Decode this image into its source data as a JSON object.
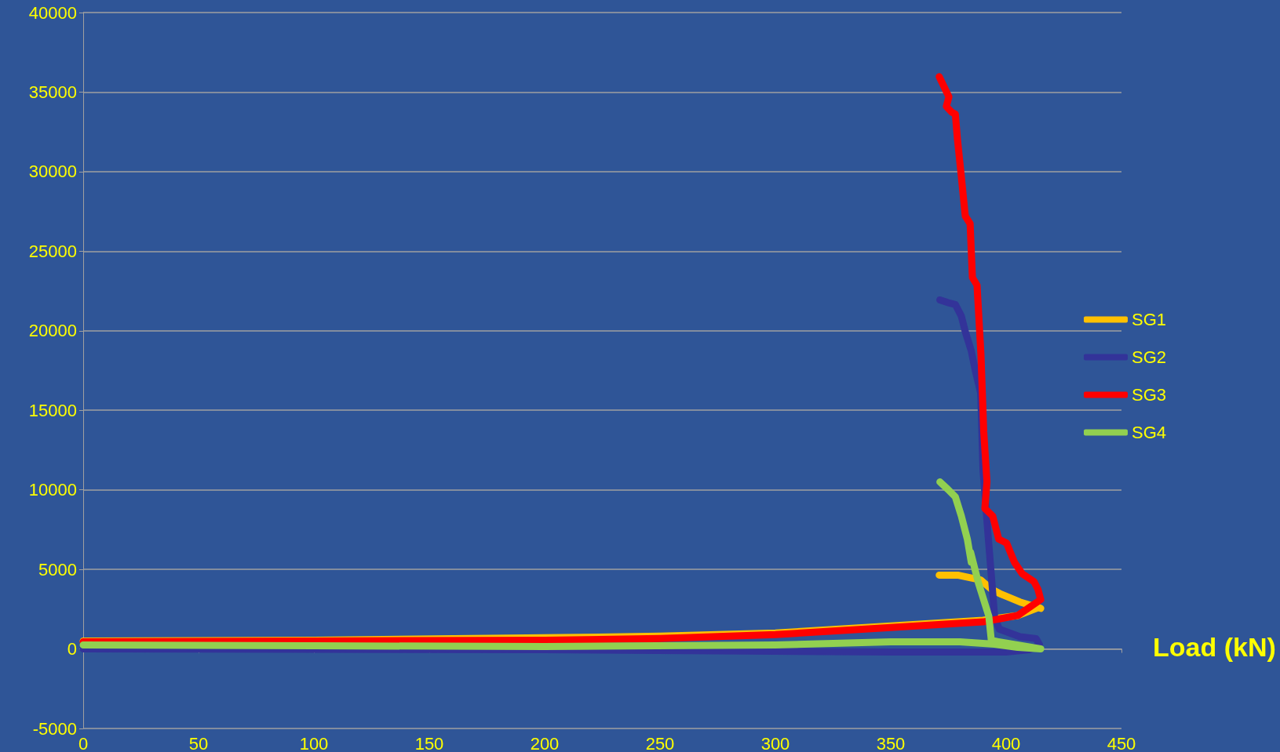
{
  "chart_data": {
    "type": "line",
    "xlabel": "Load (kN)",
    "xlim": [
      0,
      450
    ],
    "xticks": [
      0,
      50,
      100,
      150,
      200,
      250,
      300,
      350,
      400,
      450
    ],
    "ylim": [
      -5000,
      40000
    ],
    "yticks": [
      -5000,
      0,
      5000,
      10000,
      15000,
      20000,
      25000,
      30000,
      35000,
      40000
    ],
    "grid": "y",
    "legend": "right",
    "marker": "none",
    "line_style": "solid",
    "series": [
      {
        "name": "SG1",
        "color": "#ffc000",
        "x": [
          0,
          100,
          200,
          250,
          300,
          350,
          390,
          405,
          414,
          415,
          406,
          398,
          393.6,
          389,
          379,
          371
        ],
        "values": [
          500,
          550,
          700,
          800,
          1000,
          1450,
          1800,
          2100,
          2600,
          2550,
          2950,
          3430,
          3750,
          4330,
          4640,
          4640
        ]
      },
      {
        "name": "SG2",
        "color": "#333399",
        "x": [
          0,
          200,
          300,
          350,
          400,
          410,
          414.5,
          413,
          406,
          397,
          395,
          392,
          390,
          389,
          386.6,
          384.9,
          382.3,
          380.6,
          378,
          374.7,
          371.3
        ],
        "values": [
          0,
          -50,
          -150,
          -200,
          -200,
          -50,
          250,
          650,
          770,
          1250,
          2060,
          7500,
          11250,
          16080,
          17530,
          18740,
          19950,
          20920,
          21650,
          21770,
          21940
        ]
      },
      {
        "name": "SG3",
        "color": "#ff0000",
        "x": [
          0,
          100,
          200,
          250,
          300,
          350,
          390,
          405,
          415,
          413.8,
          412.1,
          407,
          403.6,
          400.2,
          396.8,
          394.2,
          390.8,
          391.7,
          390.3,
          389.1,
          387.4,
          385.4,
          384.4,
          382.3,
          380.3,
          378.9,
          378,
          376.4,
          374.1,
          375.2,
          371
        ],
        "values": [
          450,
          500,
          550,
          650,
          900,
          1350,
          1700,
          2100,
          3100,
          3750,
          4230,
          4720,
          5450,
          6660,
          6900,
          8350,
          8830,
          10520,
          13670,
          18510,
          22860,
          23340,
          26730,
          27210,
          30110,
          32050,
          33620,
          33740,
          34100,
          34700,
          35970
        ]
      },
      {
        "name": "SG4",
        "color": "#92d050",
        "x": [
          0,
          100,
          200,
          300,
          350,
          380,
          395,
          405,
          415,
          393.6,
          392.5,
          388,
          384.6,
          384.9,
          383.2,
          380.6,
          378,
          374.7,
          371.3
        ],
        "values": [
          250,
          200,
          150,
          250,
          450,
          450,
          300,
          100,
          0,
          530,
          2060,
          4150,
          6090,
          5450,
          6900,
          8350,
          9560,
          10040,
          10500
        ]
      }
    ]
  }
}
